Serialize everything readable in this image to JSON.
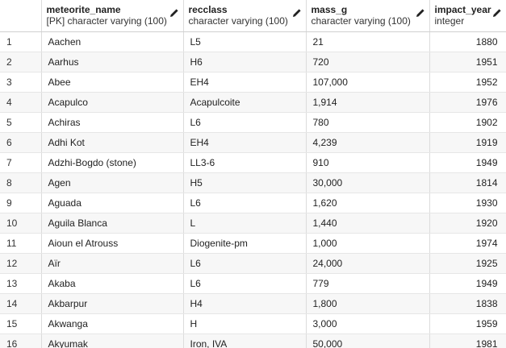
{
  "columns": [
    {
      "name": "",
      "type": ""
    },
    {
      "name": "meteorite_name",
      "type": "[PK] character varying (100)"
    },
    {
      "name": "recclass",
      "type": "character varying (100)"
    },
    {
      "name": "mass_g",
      "type": "character varying (100)"
    },
    {
      "name": "impact_year",
      "type": "integer"
    }
  ],
  "rows": [
    {
      "n": "1",
      "name": "Aachen",
      "recclass": "L5",
      "mass": "21",
      "year": "1880"
    },
    {
      "n": "2",
      "name": "Aarhus",
      "recclass": "H6",
      "mass": "720",
      "year": "1951"
    },
    {
      "n": "3",
      "name": "Abee",
      "recclass": "EH4",
      "mass": "107,000",
      "year": "1952"
    },
    {
      "n": "4",
      "name": "Acapulco",
      "recclass": "Acapulcoite",
      "mass": "1,914",
      "year": "1976"
    },
    {
      "n": "5",
      "name": "Achiras",
      "recclass": "L6",
      "mass": "780",
      "year": "1902"
    },
    {
      "n": "6",
      "name": "Adhi Kot",
      "recclass": "EH4",
      "mass": "4,239",
      "year": "1919"
    },
    {
      "n": "7",
      "name": "Adzhi-Bogdo (stone)",
      "recclass": "LL3-6",
      "mass": "910",
      "year": "1949"
    },
    {
      "n": "8",
      "name": "Agen",
      "recclass": "H5",
      "mass": "30,000",
      "year": "1814"
    },
    {
      "n": "9",
      "name": "Aguada",
      "recclass": "L6",
      "mass": "1,620",
      "year": "1930"
    },
    {
      "n": "10",
      "name": "Aguila Blanca",
      "recclass": "L",
      "mass": "1,440",
      "year": "1920"
    },
    {
      "n": "11",
      "name": "Aioun el Atrouss",
      "recclass": "Diogenite-pm",
      "mass": "1,000",
      "year": "1974"
    },
    {
      "n": "12",
      "name": "Aïr",
      "recclass": "L6",
      "mass": "24,000",
      "year": "1925"
    },
    {
      "n": "13",
      "name": "Akaba",
      "recclass": "L6",
      "mass": "779",
      "year": "1949"
    },
    {
      "n": "14",
      "name": "Akbarpur",
      "recclass": "H4",
      "mass": "1,800",
      "year": "1838"
    },
    {
      "n": "15",
      "name": "Akwanga",
      "recclass": "H",
      "mass": "3,000",
      "year": "1959"
    },
    {
      "n": "16",
      "name": "Akyumak",
      "recclass": "Iron, IVA",
      "mass": "50,000",
      "year": "1981"
    }
  ],
  "icons": {
    "edit": "pencil-icon"
  }
}
